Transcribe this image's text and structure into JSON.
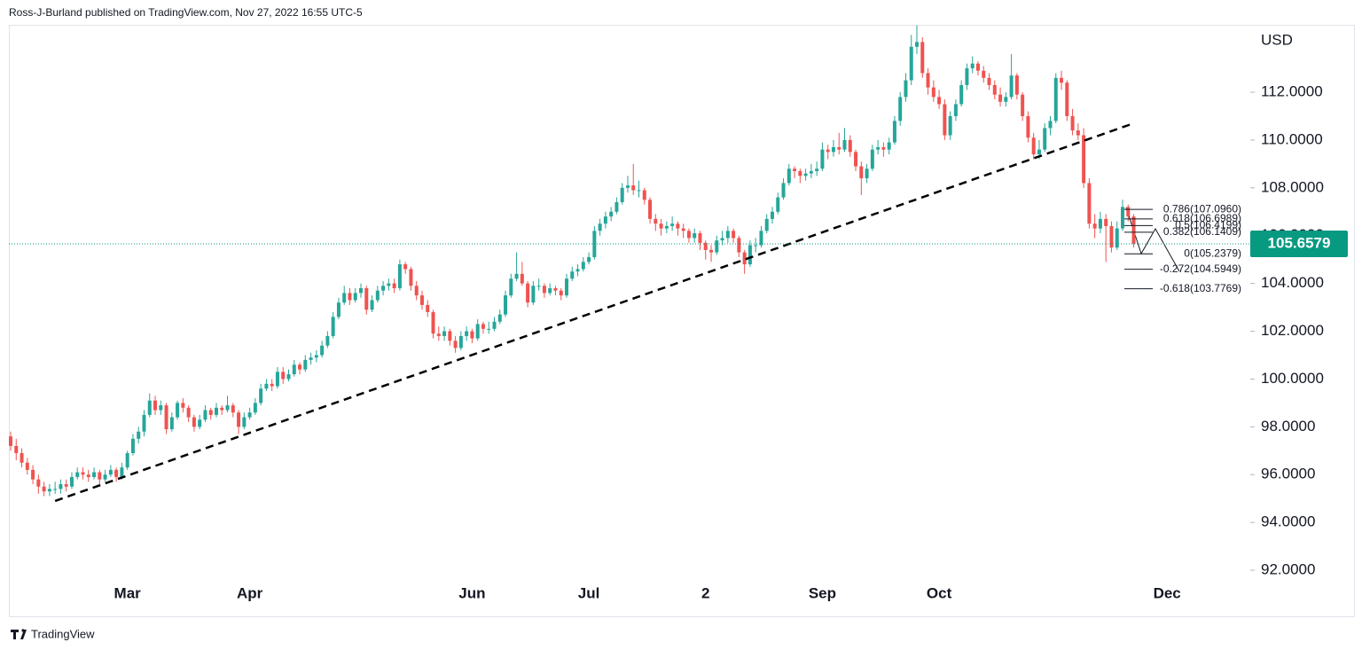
{
  "chart_data": {
    "type": "candlestick",
    "attribution": "Ross-J-Burland published on TradingView.com, Nov 27, 2022 16:55 UTC-5",
    "brand": "TradingView",
    "y_label": "USD",
    "up_color": "#26a69a",
    "down_color": "#ef5350",
    "ylim": [
      91.52,
      114.82
    ],
    "yticks": [
      {
        "value": 92,
        "label": "92.0000"
      },
      {
        "value": 94,
        "label": "94.0000"
      },
      {
        "value": 96,
        "label": "96.0000"
      },
      {
        "value": 98,
        "label": "98.0000"
      },
      {
        "value": 100,
        "label": "100.0000"
      },
      {
        "value": 102,
        "label": "102.0000"
      },
      {
        "value": 104,
        "label": "104.0000"
      },
      {
        "value": 106,
        "label": "106.0000"
      },
      {
        "value": 108,
        "label": "108.0000"
      },
      {
        "value": 110,
        "label": "110.0000"
      },
      {
        "value": 112,
        "label": "112.0000"
      }
    ],
    "categories": [
      null,
      null,
      null,
      null,
      null,
      null,
      null,
      null,
      null,
      null,
      null,
      null,
      null,
      null,
      null,
      null,
      null,
      null,
      null,
      null,
      null,
      "Mar",
      null,
      null,
      null,
      null,
      null,
      null,
      null,
      null,
      null,
      null,
      null,
      null,
      null,
      null,
      null,
      null,
      null,
      null,
      null,
      null,
      null,
      "Apr",
      null,
      null,
      null,
      null,
      null,
      null,
      null,
      null,
      null,
      null,
      null,
      null,
      null,
      null,
      null,
      null,
      null,
      null,
      null,
      null,
      null,
      null,
      null,
      null,
      null,
      null,
      null,
      null,
      null,
      null,
      null,
      null,
      null,
      null,
      null,
      null,
      null,
      null,
      null,
      "Jun",
      null,
      null,
      null,
      null,
      null,
      null,
      null,
      null,
      null,
      null,
      null,
      null,
      null,
      null,
      null,
      null,
      null,
      null,
      null,
      null,
      "Jul",
      null,
      null,
      null,
      null,
      null,
      null,
      null,
      null,
      null,
      null,
      null,
      null,
      null,
      null,
      null,
      null,
      null,
      null,
      null,
      null,
      "2",
      null,
      null,
      null,
      null,
      null,
      null,
      null,
      null,
      null,
      null,
      null,
      null,
      null,
      null,
      null,
      null,
      null,
      null,
      null,
      null,
      "Sep",
      null,
      null,
      null,
      null,
      null,
      null,
      null,
      null,
      null,
      null,
      null,
      null,
      null,
      null,
      null,
      null,
      null,
      null,
      null,
      null,
      "Oct",
      null,
      null,
      null,
      null,
      null,
      null,
      null,
      null,
      null,
      null,
      null,
      null,
      null,
      null,
      null,
      null,
      null,
      null,
      null,
      null,
      null,
      null,
      null,
      null,
      null,
      null,
      null,
      null,
      null,
      null,
      null,
      null,
      null,
      null,
      null,
      null,
      null,
      null,
      null,
      null,
      "Dec",
      null
    ],
    "candles": [
      [
        97.6,
        97.8,
        97.0,
        97.2
      ],
      [
        97.2,
        97.5,
        96.6,
        96.9
      ],
      [
        96.9,
        97.1,
        96.3,
        96.5
      ],
      [
        96.5,
        96.7,
        96.0,
        96.2
      ],
      [
        96.2,
        96.4,
        95.6,
        95.8
      ],
      [
        95.8,
        96.0,
        95.2,
        95.5
      ],
      [
        95.5,
        95.7,
        95.1,
        95.3
      ],
      [
        95.3,
        95.6,
        95.1,
        95.4
      ],
      [
        95.4,
        95.7,
        95.2,
        95.4
      ],
      [
        95.4,
        95.8,
        95.2,
        95.6
      ],
      [
        95.6,
        95.8,
        95.3,
        95.5
      ],
      [
        95.5,
        96.1,
        95.4,
        95.9
      ],
      [
        95.9,
        96.3,
        95.8,
        96.1
      ],
      [
        96.1,
        96.3,
        95.8,
        96.0
      ],
      [
        96.0,
        96.2,
        95.7,
        95.9
      ],
      [
        95.9,
        96.3,
        95.8,
        96.1
      ],
      [
        96.1,
        96.2,
        95.6,
        95.8
      ],
      [
        95.8,
        96.2,
        95.7,
        96.0
      ],
      [
        96.0,
        96.4,
        95.9,
        96.2
      ],
      [
        96.2,
        96.3,
        95.7,
        95.9
      ],
      [
        95.9,
        96.5,
        95.8,
        96.3
      ],
      [
        96.3,
        97.0,
        96.2,
        96.9
      ],
      [
        96.9,
        97.7,
        96.8,
        97.5
      ],
      [
        97.5,
        98.0,
        97.3,
        97.8
      ],
      [
        97.8,
        98.7,
        97.6,
        98.5
      ],
      [
        98.5,
        99.4,
        98.4,
        99.1
      ],
      [
        99.1,
        99.3,
        98.5,
        98.7
      ],
      [
        98.7,
        99.1,
        98.5,
        98.9
      ],
      [
        98.9,
        99.0,
        97.7,
        97.9
      ],
      [
        97.9,
        98.6,
        97.8,
        98.4
      ],
      [
        98.4,
        99.1,
        98.3,
        99.0
      ],
      [
        99.0,
        99.2,
        98.6,
        98.8
      ],
      [
        98.8,
        98.9,
        98.2,
        98.4
      ],
      [
        98.4,
        98.5,
        97.8,
        98.0
      ],
      [
        98.0,
        98.5,
        97.9,
        98.3
      ],
      [
        98.3,
        98.9,
        98.2,
        98.7
      ],
      [
        98.7,
        98.8,
        98.3,
        98.5
      ],
      [
        98.5,
        99.0,
        98.4,
        98.8
      ],
      [
        98.8,
        98.9,
        98.5,
        98.7
      ],
      [
        98.7,
        99.3,
        98.6,
        98.9
      ],
      [
        98.9,
        99.0,
        98.4,
        98.6
      ],
      [
        98.6,
        98.7,
        97.7,
        98.0
      ],
      [
        98.0,
        98.6,
        97.9,
        98.4
      ],
      [
        98.4,
        98.8,
        98.3,
        98.6
      ],
      [
        98.6,
        99.2,
        98.5,
        99.0
      ],
      [
        99.0,
        99.8,
        98.9,
        99.6
      ],
      [
        99.6,
        100.0,
        99.5,
        99.8
      ],
      [
        99.8,
        100.0,
        99.5,
        99.7
      ],
      [
        99.7,
        100.5,
        99.6,
        100.3
      ],
      [
        100.3,
        100.5,
        99.8,
        100.0
      ],
      [
        100.0,
        100.4,
        99.9,
        100.2
      ],
      [
        100.2,
        100.8,
        100.1,
        100.6
      ],
      [
        100.6,
        100.7,
        100.2,
        100.4
      ],
      [
        100.4,
        101.0,
        100.3,
        100.8
      ],
      [
        100.8,
        101.1,
        100.6,
        100.9
      ],
      [
        100.9,
        101.2,
        100.7,
        101.0
      ],
      [
        101.0,
        101.6,
        100.9,
        101.4
      ],
      [
        101.4,
        102.0,
        101.3,
        101.8
      ],
      [
        101.8,
        102.8,
        101.7,
        102.6
      ],
      [
        102.6,
        103.4,
        102.5,
        103.2
      ],
      [
        103.2,
        103.9,
        103.1,
        103.6
      ],
      [
        103.6,
        103.8,
        103.1,
        103.3
      ],
      [
        103.3,
        103.8,
        103.2,
        103.6
      ],
      [
        103.6,
        104.0,
        103.4,
        103.8
      ],
      [
        103.8,
        103.9,
        102.7,
        102.9
      ],
      [
        102.9,
        103.5,
        102.8,
        103.3
      ],
      [
        103.3,
        103.9,
        103.2,
        103.7
      ],
      [
        103.7,
        104.1,
        103.5,
        103.9
      ],
      [
        103.9,
        104.2,
        103.7,
        104.0
      ],
      [
        104.0,
        104.2,
        103.6,
        103.8
      ],
      [
        103.8,
        105.0,
        103.7,
        104.8
      ],
      [
        104.8,
        104.9,
        104.4,
        104.6
      ],
      [
        104.6,
        104.7,
        103.7,
        103.9
      ],
      [
        103.9,
        104.1,
        103.3,
        103.5
      ],
      [
        103.5,
        103.7,
        102.9,
        103.1
      ],
      [
        103.1,
        103.3,
        102.6,
        102.8
      ],
      [
        102.8,
        102.9,
        101.7,
        101.9
      ],
      [
        101.9,
        102.2,
        101.6,
        101.8
      ],
      [
        101.8,
        102.2,
        101.6,
        102.0
      ],
      [
        102.0,
        102.1,
        101.4,
        101.6
      ],
      [
        101.6,
        101.8,
        101.1,
        101.3
      ],
      [
        101.3,
        102.0,
        101.2,
        101.8
      ],
      [
        101.8,
        102.2,
        101.6,
        102.0
      ],
      [
        102.0,
        102.1,
        101.5,
        101.7
      ],
      [
        101.7,
        102.5,
        101.6,
        102.3
      ],
      [
        102.3,
        102.4,
        101.9,
        102.1
      ],
      [
        102.1,
        102.4,
        101.9,
        102.1
      ],
      [
        102.1,
        102.6,
        102.0,
        102.4
      ],
      [
        102.4,
        102.9,
        102.3,
        102.7
      ],
      [
        102.7,
        103.7,
        102.6,
        103.5
      ],
      [
        103.5,
        104.4,
        103.4,
        104.2
      ],
      [
        104.2,
        105.3,
        104.1,
        104.4
      ],
      [
        104.4,
        104.9,
        103.9,
        104.0
      ],
      [
        104.0,
        104.1,
        103.0,
        103.2
      ],
      [
        103.2,
        104.1,
        103.1,
        103.9
      ],
      [
        103.9,
        104.2,
        103.7,
        103.9
      ],
      [
        103.9,
        104.0,
        103.4,
        103.6
      ],
      [
        103.6,
        104.0,
        103.5,
        103.8
      ],
      [
        103.8,
        103.9,
        103.5,
        103.7
      ],
      [
        103.7,
        103.8,
        103.3,
        103.5
      ],
      [
        103.5,
        104.4,
        103.4,
        104.2
      ],
      [
        104.2,
        104.7,
        104.1,
        104.5
      ],
      [
        104.5,
        104.8,
        104.3,
        104.6
      ],
      [
        104.6,
        105.1,
        104.5,
        104.9
      ],
      [
        104.9,
        105.3,
        104.8,
        105.1
      ],
      [
        105.1,
        106.4,
        105.0,
        106.2
      ],
      [
        106.2,
        106.7,
        106.0,
        106.5
      ],
      [
        106.5,
        107.0,
        106.3,
        106.8
      ],
      [
        106.8,
        107.2,
        106.6,
        107.0
      ],
      [
        107.0,
        107.6,
        106.9,
        107.4
      ],
      [
        107.4,
        108.2,
        107.3,
        108.0
      ],
      [
        108.0,
        108.5,
        107.8,
        108.1
      ],
      [
        108.1,
        109.0,
        107.7,
        107.9
      ],
      [
        107.9,
        108.3,
        107.6,
        107.9
      ],
      [
        107.9,
        108.0,
        107.3,
        107.5
      ],
      [
        107.5,
        107.6,
        106.5,
        106.7
      ],
      [
        106.7,
        106.9,
        106.2,
        106.5
      ],
      [
        106.5,
        106.7,
        106.0,
        106.3
      ],
      [
        106.3,
        106.6,
        106.1,
        106.4
      ],
      [
        106.4,
        106.8,
        106.2,
        106.5
      ],
      [
        106.5,
        106.6,
        106.0,
        106.3
      ],
      [
        106.3,
        106.5,
        105.9,
        106.2
      ],
      [
        106.2,
        106.3,
        105.7,
        105.9
      ],
      [
        105.9,
        106.3,
        105.7,
        106.1
      ],
      [
        106.1,
        106.2,
        105.4,
        105.7
      ],
      [
        105.7,
        105.8,
        105.0,
        105.4
      ],
      [
        105.4,
        105.6,
        104.9,
        105.3
      ],
      [
        105.3,
        106.0,
        105.2,
        105.8
      ],
      [
        105.8,
        106.2,
        105.6,
        105.9
      ],
      [
        105.9,
        106.4,
        105.7,
        106.2
      ],
      [
        106.2,
        106.3,
        105.7,
        105.9
      ],
      [
        105.9,
        106.0,
        105.1,
        105.3
      ],
      [
        105.3,
        105.4,
        104.4,
        104.8
      ],
      [
        104.8,
        105.8,
        104.7,
        105.6
      ],
      [
        105.6,
        105.9,
        105.3,
        105.6
      ],
      [
        105.6,
        106.4,
        105.5,
        106.2
      ],
      [
        106.2,
        106.9,
        106.1,
        106.7
      ],
      [
        106.7,
        107.2,
        106.5,
        107.0
      ],
      [
        107.0,
        107.8,
        106.9,
        107.6
      ],
      [
        107.6,
        108.4,
        107.5,
        108.2
      ],
      [
        108.2,
        109.0,
        108.1,
        108.8
      ],
      [
        108.8,
        108.9,
        108.4,
        108.7
      ],
      [
        108.7,
        108.8,
        108.2,
        108.5
      ],
      [
        108.5,
        108.8,
        108.3,
        108.6
      ],
      [
        108.6,
        109.0,
        108.4,
        108.7
      ],
      [
        108.7,
        109.1,
        108.5,
        108.8
      ],
      [
        108.8,
        109.9,
        108.7,
        109.6
      ],
      [
        109.6,
        109.8,
        109.2,
        109.5
      ],
      [
        109.5,
        110.0,
        109.3,
        109.7
      ],
      [
        109.7,
        110.3,
        109.4,
        109.6
      ],
      [
        109.6,
        110.5,
        109.5,
        110.0
      ],
      [
        110.0,
        110.2,
        109.3,
        109.5
      ],
      [
        109.5,
        109.6,
        108.7,
        108.9
      ],
      [
        108.9,
        109.1,
        107.7,
        108.4
      ],
      [
        108.4,
        109.0,
        108.2,
        108.8
      ],
      [
        108.8,
        109.8,
        108.7,
        109.6
      ],
      [
        109.6,
        110.0,
        109.4,
        109.7
      ],
      [
        109.7,
        109.9,
        109.3,
        109.6
      ],
      [
        109.6,
        110.1,
        109.4,
        109.9
      ],
      [
        109.9,
        111.0,
        109.8,
        110.8
      ],
      [
        110.8,
        112.0,
        110.6,
        111.8
      ],
      [
        111.8,
        112.8,
        111.6,
        112.5
      ],
      [
        112.5,
        114.4,
        112.3,
        113.9
      ],
      [
        113.9,
        114.8,
        113.6,
        114.1
      ],
      [
        114.1,
        114.3,
        112.6,
        112.8
      ],
      [
        112.8,
        113.0,
        111.9,
        112.2
      ],
      [
        112.2,
        112.5,
        111.6,
        111.8
      ],
      [
        111.8,
        112.1,
        111.3,
        111.5
      ],
      [
        111.5,
        111.7,
        110.0,
        110.2
      ],
      [
        110.2,
        111.2,
        110.0,
        111.0
      ],
      [
        111.0,
        111.7,
        110.8,
        111.5
      ],
      [
        111.5,
        112.5,
        111.4,
        112.3
      ],
      [
        112.3,
        113.2,
        112.1,
        113.0
      ],
      [
        113.0,
        113.5,
        112.8,
        113.2
      ],
      [
        113.2,
        113.3,
        112.7,
        112.9
      ],
      [
        112.9,
        113.1,
        112.4,
        112.6
      ],
      [
        112.6,
        112.8,
        112.1,
        112.3
      ],
      [
        112.3,
        112.5,
        111.7,
        111.9
      ],
      [
        111.9,
        112.2,
        111.4,
        111.6
      ],
      [
        111.6,
        112.0,
        111.4,
        111.8
      ],
      [
        111.8,
        113.6,
        111.7,
        112.7
      ],
      [
        112.7,
        112.8,
        111.7,
        111.9
      ],
      [
        111.9,
        112.0,
        110.8,
        111.0
      ],
      [
        111.0,
        111.2,
        109.9,
        110.1
      ],
      [
        110.1,
        110.3,
        109.2,
        109.4
      ],
      [
        109.4,
        110.0,
        109.2,
        109.6
      ],
      [
        109.6,
        110.7,
        109.5,
        110.5
      ],
      [
        110.5,
        111.0,
        110.2,
        110.8
      ],
      [
        110.8,
        112.8,
        110.7,
        112.6
      ],
      [
        112.6,
        112.9,
        112.1,
        112.4
      ],
      [
        112.4,
        112.5,
        110.8,
        111.0
      ],
      [
        111.0,
        111.3,
        110.2,
        110.4
      ],
      [
        110.4,
        110.7,
        110.0,
        110.2
      ],
      [
        110.2,
        110.5,
        108.0,
        108.2
      ],
      [
        108.2,
        108.4,
        106.3,
        106.5
      ],
      [
        106.5,
        106.9,
        105.9,
        106.3
      ],
      [
        106.3,
        107.0,
        106.1,
        106.7
      ],
      [
        106.7,
        106.9,
        104.9,
        106.4
      ],
      [
        106.4,
        106.6,
        105.3,
        105.5
      ],
      [
        105.5,
        106.6,
        105.4,
        106.3
      ],
      [
        106.3,
        107.5,
        106.2,
        107.2
      ],
      [
        107.2,
        107.3,
        106.6,
        106.8
      ],
      [
        106.8,
        106.9,
        105.5,
        105.6579
      ],
      null,
      null,
      null,
      null,
      null,
      null,
      null
    ],
    "last_color": "#089981",
    "trendline": {
      "x": [
        8,
        202
      ],
      "y": [
        94.9,
        110.7
      ]
    },
    "fib_levels": [
      {
        "value": 107.096,
        "label": "0.786(107.0960)"
      },
      {
        "value": 106.6989,
        "label": "0.618(106.6989)"
      },
      {
        "value": 106.4199,
        "label": "0.5(106.4199)"
      },
      {
        "value": 106.1409,
        "label": "0.382(106.1409)"
      },
      {
        "value": 105.2379,
        "label": "0(105.2379)"
      },
      {
        "value": 104.5949,
        "label": "-0.272(104.5949)"
      },
      {
        "value": 103.7769,
        "label": "-0.618(103.7769)"
      }
    ]
  }
}
